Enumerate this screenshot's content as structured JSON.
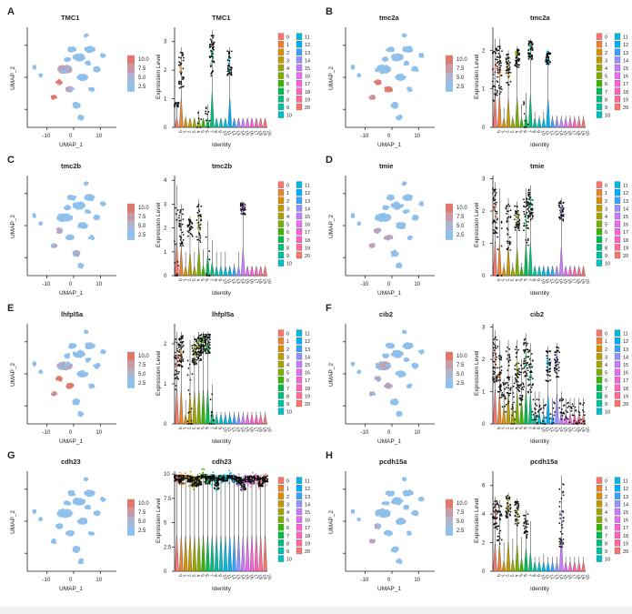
{
  "figure": {
    "umap_xlabel": "UMAP_1",
    "umap_ylabel": "UMAP_2",
    "umap_xticks": [
      "-10",
      "0",
      "10"
    ],
    "vln_ylabel": "Expression Level",
    "vln_xlabel": "Identity",
    "scale_labels": [
      "10.0",
      "7.5",
      "5.0",
      "2.5"
    ],
    "scale_colors": [
      "#e0796c",
      "#c79aa8",
      "#a8b6d3",
      "#8fc0ec"
    ],
    "background_cell_color": "#8fc0ec",
    "high_cell_color": "#e0796c",
    "mid_cell_color": "#c0a0b4",
    "cluster_ids": [
      "0",
      "1",
      "2",
      "3",
      "4",
      "5",
      "6",
      "7",
      "8",
      "9",
      "10",
      "11",
      "12",
      "13",
      "14",
      "15",
      "16",
      "17",
      "18",
      "19",
      "20"
    ],
    "cluster_colors": [
      "#f8766d",
      "#ea8331",
      "#d89000",
      "#c09b00",
      "#a3a500",
      "#7cae00",
      "#39b600",
      "#00bb4e",
      "#00bf7d",
      "#00c1a3",
      "#00bfc4",
      "#00bae0",
      "#00b0f6",
      "#35a2ff",
      "#9590ff",
      "#c77cff",
      "#e76bf3",
      "#fa62db",
      "#ff62bc",
      "#ff6a98",
      "#f8766d"
    ]
  },
  "panels": [
    {
      "letter": "A",
      "gene": "TMC1"
    },
    {
      "letter": "B",
      "gene": "tmc2a"
    },
    {
      "letter": "C",
      "gene": "tmc2b"
    },
    {
      "letter": "D",
      "gene": "tmie"
    },
    {
      "letter": "E",
      "gene": "lhfpl5a"
    },
    {
      "letter": "F",
      "gene": "cib2"
    },
    {
      "letter": "G",
      "gene": "cdh23"
    },
    {
      "letter": "H",
      "gene": "pcdh15a"
    }
  ],
  "chart_data": [
    {
      "type": "scatter",
      "subtype": "umap_feature_plot",
      "gene": "TMC1",
      "legend": "expression 2.5–10.0"
    },
    {
      "type": "violin",
      "gene": "TMC1",
      "ylim": [
        0,
        3.5
      ],
      "yticks": [
        0,
        1,
        2,
        3
      ],
      "medians": [
        0.8,
        2.0,
        0,
        0,
        0,
        0.2,
        0,
        0.3,
        2.5,
        0,
        0,
        0,
        2.2,
        0,
        0,
        0,
        0,
        0,
        0,
        0,
        0
      ],
      "heights": [
        0.9,
        2.8,
        0.4,
        0.3,
        0.2,
        0.6,
        0.3,
        0.8,
        3.4,
        0.2,
        0.2,
        0.3,
        2.8,
        0.2,
        0.2,
        0.2,
        0.2,
        0.2,
        0.2,
        0.2,
        0.2
      ]
    },
    {
      "type": "scatter",
      "subtype": "umap_feature_plot",
      "gene": "tmc2a",
      "legend": "expression 2.5–10.0"
    },
    {
      "type": "violin",
      "gene": "tmc2a",
      "ylim": [
        0,
        2.6
      ],
      "yticks": [
        0,
        1,
        2
      ],
      "medians": [
        1.4,
        1.5,
        0,
        1.5,
        0,
        1.8,
        0,
        0.2,
        2.0,
        0,
        0,
        0,
        1.8,
        0,
        0,
        0,
        0,
        0,
        0,
        0,
        0
      ],
      "heights": [
        2.3,
        2.3,
        0.5,
        2.0,
        0.3,
        2.1,
        0.6,
        0.9,
        2.3,
        0.4,
        0.3,
        0.4,
        2.0,
        0.3,
        0.3,
        0.3,
        0.3,
        0.3,
        0.3,
        0.3,
        0.3
      ]
    },
    {
      "type": "scatter",
      "subtype": "umap_feature_plot",
      "gene": "tmc2b",
      "legend": "expression 2.5–10.0"
    },
    {
      "type": "violin",
      "gene": "tmc2b",
      "ylim": [
        0,
        4.2
      ],
      "yticks": [
        0,
        1,
        2,
        3,
        4
      ],
      "medians": [
        0.8,
        2.0,
        0,
        2.0,
        0,
        2.2,
        0,
        0.3,
        0,
        0,
        0,
        0,
        0,
        0,
        0,
        2.8,
        0,
        0,
        0,
        0,
        0
      ],
      "heights": [
        3.8,
        3.0,
        1.0,
        2.5,
        1.0,
        3.2,
        1.1,
        2.3,
        1.5,
        1.0,
        1.0,
        1.0,
        0.4,
        0.5,
        1.0,
        3.1,
        0.4,
        0.4,
        0.4,
        0.4,
        0.4
      ]
    },
    {
      "type": "scatter",
      "subtype": "umap_feature_plot",
      "gene": "tmie",
      "legend": "expression 2.5–10.0"
    },
    {
      "type": "violin",
      "gene": "tmie",
      "ylim": [
        0,
        3.1
      ],
      "yticks": [
        0,
        1,
        2,
        3
      ],
      "medians": [
        2.0,
        0.5,
        0,
        1.5,
        0,
        1.8,
        0,
        1.7,
        2.2,
        0,
        0,
        0,
        0,
        0,
        0,
        2.0,
        0,
        0,
        0,
        0,
        0
      ],
      "heights": [
        2.9,
        2.7,
        0.4,
        2.4,
        0.4,
        2.3,
        0.4,
        2.7,
        2.8,
        0.3,
        0.3,
        0.3,
        0.3,
        0.3,
        0.3,
        2.4,
        0.3,
        0.3,
        0.3,
        0.3,
        0.3
      ]
    },
    {
      "type": "scatter",
      "subtype": "umap_feature_plot",
      "gene": "lhfpl5a",
      "legend": "expression 2.5–10.0"
    },
    {
      "type": "violin",
      "gene": "lhfpl5a",
      "ylim": [
        0,
        2.5
      ],
      "yticks": [
        0,
        1,
        2
      ],
      "medians": [
        1.5,
        1.8,
        0,
        0.6,
        1.8,
        1.9,
        2.0,
        2.0,
        0.3,
        0,
        0,
        0,
        0,
        0,
        0,
        0,
        0,
        0,
        0,
        0,
        0
      ],
      "heights": [
        2.3,
        2.3,
        0.6,
        2.1,
        2.2,
        2.3,
        2.3,
        2.3,
        1.0,
        0.3,
        0.3,
        0.3,
        0.3,
        0.3,
        0.3,
        0.3,
        0.3,
        0.3,
        0.3,
        0.3,
        0.3
      ]
    },
    {
      "type": "scatter",
      "subtype": "umap_feature_plot",
      "gene": "cib2",
      "legend": "expression 2.5–10.0"
    },
    {
      "type": "violin",
      "gene": "cib2",
      "ylim": [
        0,
        3.1
      ],
      "yticks": [
        0,
        1,
        2,
        3
      ],
      "medians": [
        2.0,
        1.6,
        0.8,
        1.5,
        0.6,
        1.7,
        1.2,
        2.0,
        1.6,
        0.5,
        0.4,
        0.3,
        1.8,
        0.3,
        1.9,
        0.5,
        0.3,
        0.3,
        0.3,
        0.3,
        0.3
      ],
      "heights": [
        2.9,
        2.6,
        1.4,
        2.6,
        1.5,
        2.6,
        2.0,
        2.8,
        2.5,
        1.0,
        1.0,
        0.8,
        2.4,
        0.8,
        2.5,
        1.0,
        0.8,
        0.8,
        0.8,
        0.8,
        0.8
      ]
    },
    {
      "type": "scatter",
      "subtype": "umap_feature_plot",
      "gene": "cdh23",
      "legend": "expression 2.5–10.0"
    },
    {
      "type": "violin",
      "gene": "cdh23",
      "ylim": [
        0,
        10.3
      ],
      "yticks": [
        0,
        2.5,
        5.0,
        7.5,
        10.0
      ],
      "medians": [
        9.6,
        9.4,
        9.7,
        9.5,
        9.2,
        9.3,
        9.8,
        9.4,
        9.6,
        9.1,
        9.6,
        9.5,
        9.7,
        9.5,
        9.3,
        9.0,
        9.5,
        9.4,
        9.6,
        9.2,
        9.5
      ],
      "heights": [
        10.0,
        10.0,
        9.9,
        9.9,
        9.8,
        9.9,
        10.0,
        9.9,
        10.0,
        9.9,
        9.9,
        9.8,
        9.9,
        9.9,
        9.8,
        9.8,
        9.9,
        9.9,
        9.9,
        9.8,
        9.9
      ]
    },
    {
      "type": "scatter",
      "subtype": "umap_feature_plot",
      "gene": "pcdh15a",
      "legend": "expression 2.5–10.0"
    },
    {
      "type": "violin",
      "gene": "pcdh15a",
      "ylim": [
        0,
        7
      ],
      "yticks": [
        0,
        2,
        4,
        6
      ],
      "medians": [
        4.0,
        3.2,
        0,
        4.5,
        0,
        4.0,
        0,
        3.2,
        0,
        0,
        0,
        0,
        0,
        0,
        0,
        3.8,
        0,
        0,
        0,
        0,
        0
      ],
      "heights": [
        5.2,
        5.0,
        2.0,
        5.5,
        2.3,
        5.1,
        2.4,
        4.3,
        3.5,
        1.0,
        1.0,
        1.2,
        1.0,
        1.0,
        1.0,
        6.7,
        1.0,
        1.0,
        1.0,
        1.0,
        1.0
      ]
    }
  ]
}
